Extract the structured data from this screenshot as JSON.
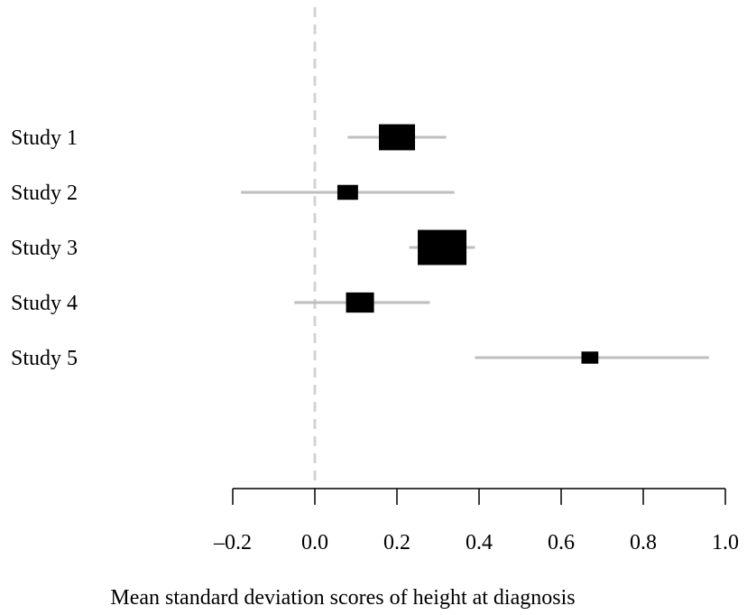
{
  "chart_data": {
    "type": "forest",
    "title": "",
    "xlabel": "Mean standard deviation scores of height at diagnosis",
    "xlim": [
      -0.2,
      1.0
    ],
    "x_ticks": [
      -0.2,
      0.0,
      0.2,
      0.4,
      0.6,
      0.8,
      1.0
    ],
    "x_tick_labels": [
      "–0.2",
      "0.0",
      "0.2",
      "0.4",
      "0.6",
      "0.8",
      "1.0"
    ],
    "reference_line": 0.0,
    "studies": [
      {
        "label": "Study 1",
        "estimate": 0.2,
        "lower": 0.08,
        "upper": 0.32,
        "weight": 0.55
      },
      {
        "label": "Study 2",
        "estimate": 0.08,
        "lower": -0.18,
        "upper": 0.34,
        "weight": 0.18
      },
      {
        "label": "Study 3",
        "estimate": 0.31,
        "lower": 0.23,
        "upper": 0.39,
        "weight": 1.0
      },
      {
        "label": "Study 4",
        "estimate": 0.11,
        "lower": -0.05,
        "upper": 0.28,
        "weight": 0.33
      },
      {
        "label": "Study 5",
        "estimate": 0.67,
        "lower": 0.39,
        "upper": 0.96,
        "weight": 0.12
      }
    ],
    "colors": {
      "box": "#000000",
      "ci_line": "#bebebe",
      "reference_line": "#d3d3d3",
      "axis": "#000000"
    }
  }
}
